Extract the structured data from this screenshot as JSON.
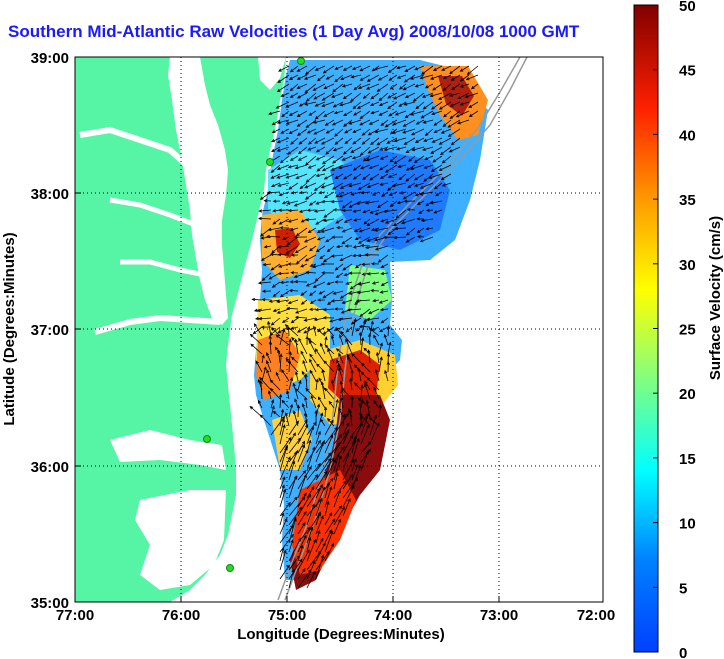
{
  "title": "Southern Mid-Atlantic Raw Velocities (1 Day Avg) 2008/10/08 1000 GMT",
  "map": {
    "x_ticks": [
      "77:00",
      "76:00",
      "75:00",
      "74:00",
      "73:00",
      "72:00"
    ],
    "y_ticks": [
      "39:00",
      "38:00",
      "37:00",
      "36:00",
      "35:00"
    ],
    "xlabel": "Longitude (Degrees:Minutes)",
    "ylabel": "Latitude (Degrees:Minutes)",
    "lon_range": [
      -77,
      -72
    ],
    "lat_range": [
      35,
      39
    ],
    "grid": "dotted",
    "land_color": "#55f5a5",
    "water_color": "#ffffff",
    "station_color": "#22dd22"
  },
  "colorbar": {
    "label": "Surface Velocity (cm/s)",
    "ticks": [
      "50",
      "45",
      "40",
      "35",
      "30",
      "25",
      "20",
      "15",
      "10",
      "5",
      "0"
    ],
    "range": [
      0,
      50
    ],
    "colormap": "jet"
  }
}
